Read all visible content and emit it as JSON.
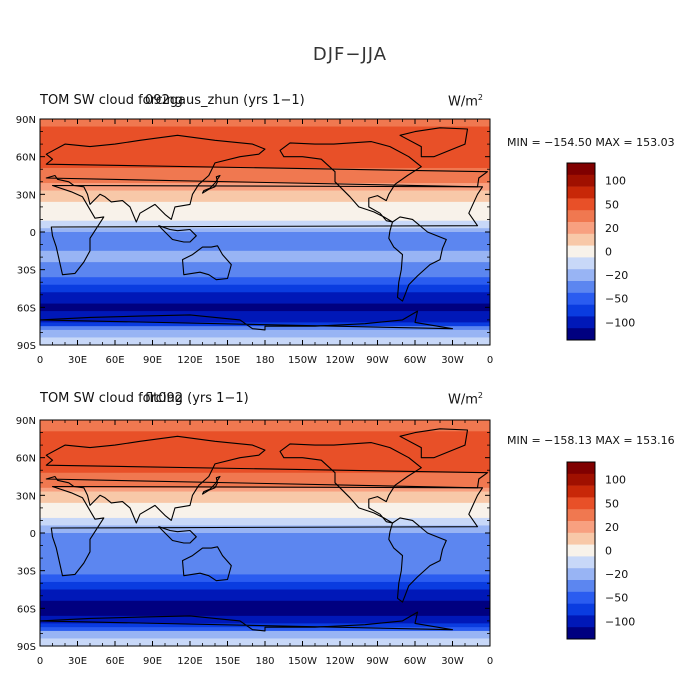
{
  "figure_title": "DJF−JJA",
  "panels": [
    {
      "title_a": "TOM SW cloud forcing",
      "title_b": "092gaus_zhun (yrs 1−1)",
      "units_base": "W/m",
      "units_exp": "2",
      "minmax": "MIN = −154.50 MAX = 153.03"
    },
    {
      "title_a": "TOM SW cloud forcing",
      "title_b": "flt092 (yrs 1−1)",
      "units_base": "W/m",
      "units_exp": "2",
      "minmax": "MIN = −158.13 MAX = 153.16"
    }
  ],
  "colors": {
    "levels": [
      "#000080",
      "#0018b8",
      "#0a3ce0",
      "#2a5cf0",
      "#5c86f0",
      "#98b4f4",
      "#c8d8f8",
      "#f8f2ea",
      "#f8c8a8",
      "#f8a080",
      "#f07850",
      "#e85028",
      "#c82808",
      "#a01000",
      "#800000"
    ],
    "ocean_neutral": "#dce8f8"
  },
  "chart_data": [
    {
      "type": "heatmap",
      "title": "TOM SW cloud forcing",
      "subtitle": "092gaus_zhun (yrs 1−1)",
      "units": "W/m2",
      "x_ticks": [
        "0",
        "30E",
        "60E",
        "90E",
        "120E",
        "150E",
        "180",
        "150W",
        "120W",
        "90W",
        "60W",
        "30W",
        "0"
      ],
      "y_ticks": [
        "90N",
        "60N",
        "30N",
        "0",
        "30S",
        "60S",
        "90S"
      ],
      "colorbar_ticks": [
        "100",
        "50",
        "20",
        "0",
        "−20",
        "−50",
        "−100"
      ],
      "min": -154.5,
      "max": 153.03,
      "zonal_profile": {
        "lat": [
          90,
          80,
          70,
          60,
          50,
          40,
          30,
          20,
          10,
          0,
          -10,
          -20,
          -30,
          -40,
          -50,
          -60,
          -70,
          -80,
          -90
        ],
        "value": [
          45,
          85,
          75,
          90,
          75,
          55,
          25,
          15,
          10,
          -20,
          -25,
          -15,
          -25,
          -45,
          -85,
          -110,
          -80,
          -10,
          -5
        ]
      }
    },
    {
      "type": "heatmap",
      "title": "TOM SW cloud forcing",
      "subtitle": "flt092 (yrs 1−1)",
      "units": "W/m2",
      "x_ticks": [
        "0",
        "30E",
        "60E",
        "90E",
        "120E",
        "150E",
        "180",
        "150W",
        "120W",
        "90W",
        "60W",
        "30W",
        "0"
      ],
      "y_ticks": [
        "90N",
        "60N",
        "30N",
        "0",
        "30S",
        "60S",
        "90S"
      ],
      "colorbar_ticks": [
        "100",
        "50",
        "20",
        "0",
        "−20",
        "−50",
        "−100"
      ],
      "min": -158.13,
      "max": 153.16,
      "zonal_profile": {
        "lat": [
          90,
          80,
          70,
          60,
          50,
          40,
          30,
          20,
          10,
          0,
          -10,
          -20,
          -30,
          -40,
          -50,
          -60,
          -70,
          -80,
          -90
        ],
        "value": [
          50,
          80,
          75,
          95,
          80,
          60,
          30,
          15,
          5,
          -20,
          -25,
          -20,
          -30,
          -50,
          -90,
          -120,
          -85,
          -10,
          -5
        ]
      }
    }
  ]
}
